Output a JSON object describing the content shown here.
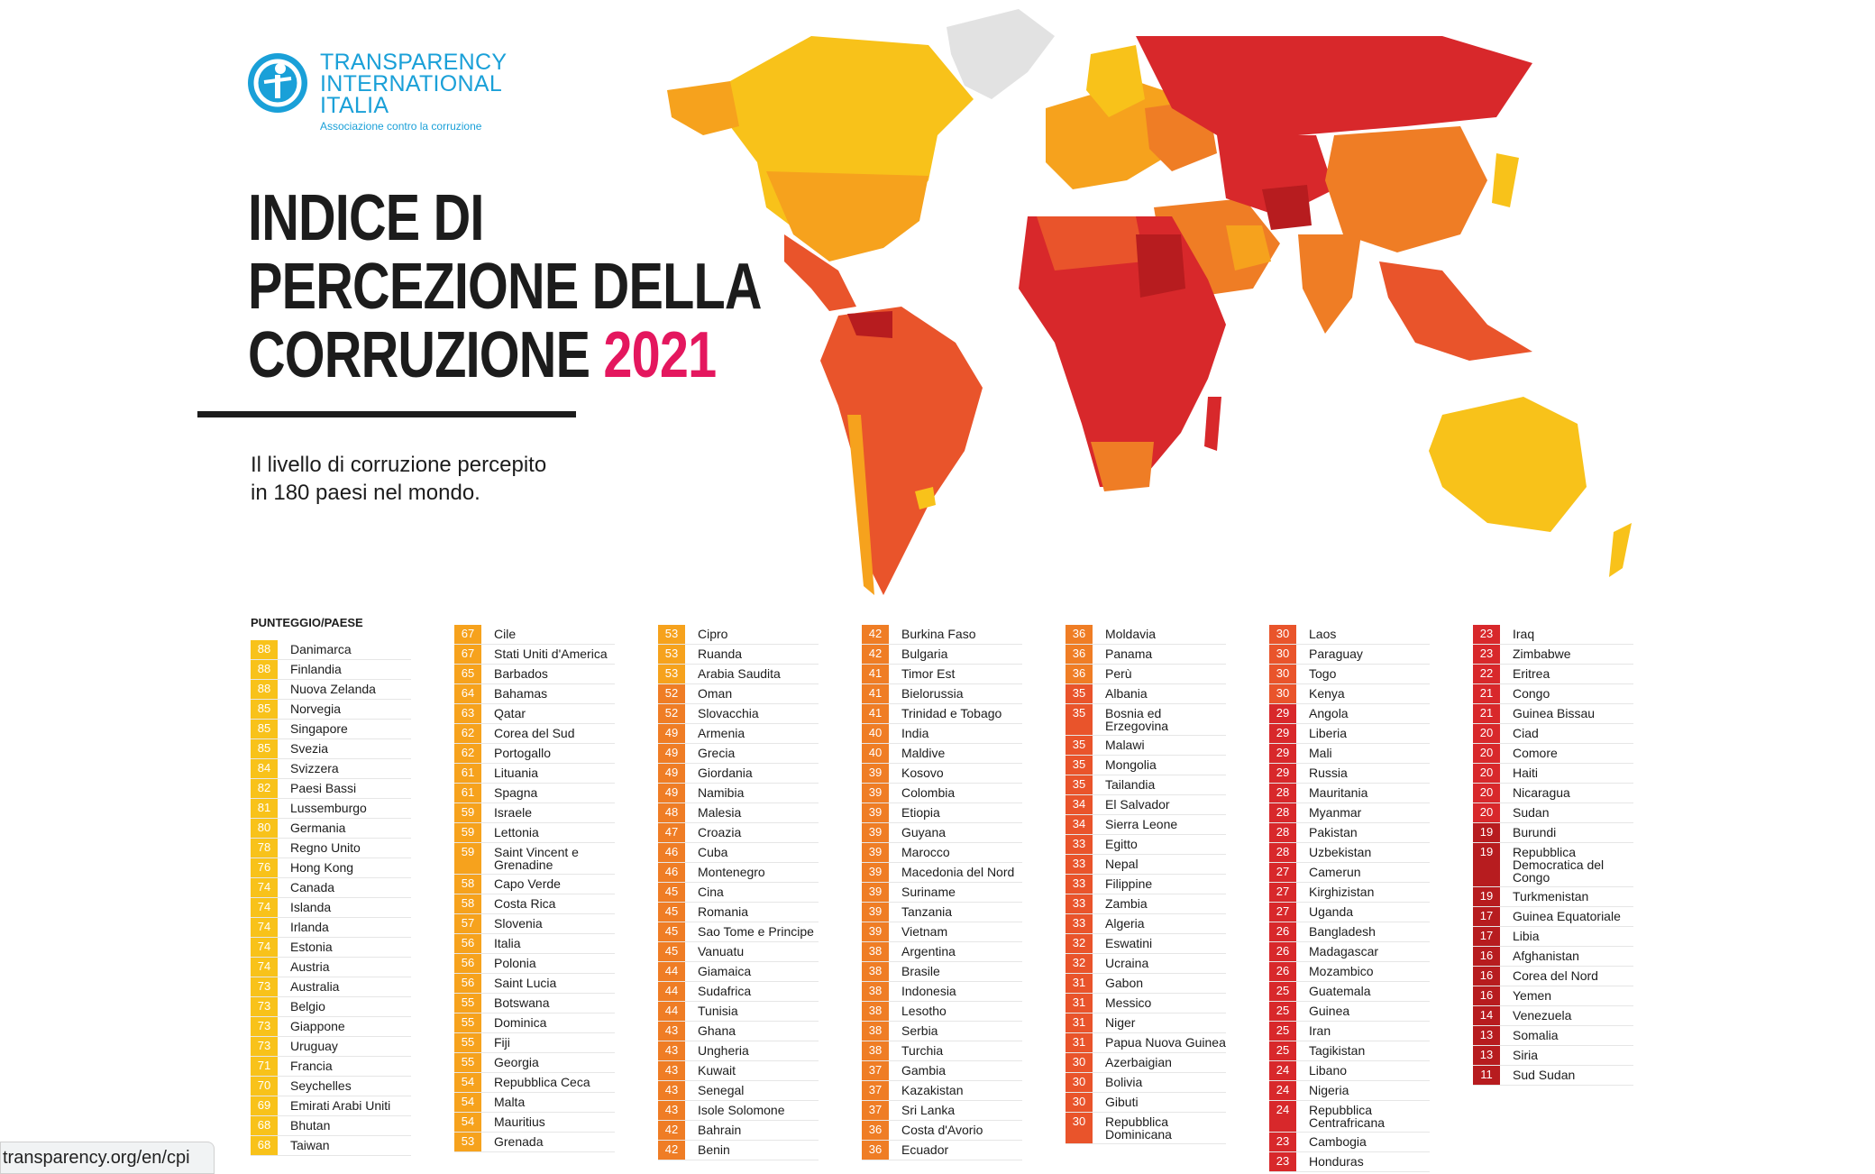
{
  "logo": {
    "line1": "TRANSPARENCY",
    "line2": "INTERNATIONAL",
    "line3": "ITALIA",
    "subtitle": "Associazione contro la corruzione"
  },
  "title": {
    "line1": "INDICE DI",
    "line2": "PERCEZIONE DELLA",
    "line3": "CORRUZIONE",
    "year": "2021"
  },
  "subtitle": {
    "line1": "Il livello di corruzione percepito",
    "line2": "in 180 paesi nel mondo."
  },
  "legend_header": "PUNTEGGIO/PAESE",
  "url": "transparency.org/en/cpi",
  "colors": {
    "high": "#f8c21a",
    "upper": "#f6a21d",
    "mid": "#ef7d25",
    "lowmid": "#e9542b",
    "low": "#d8282b",
    "lowest": "#b71c1f"
  },
  "columns": [
    [
      [
        "88",
        "Danimarca"
      ],
      [
        "88",
        "Finlandia"
      ],
      [
        "88",
        "Nuova Zelanda"
      ],
      [
        "85",
        "Norvegia"
      ],
      [
        "85",
        "Singapore"
      ],
      [
        "85",
        "Svezia"
      ],
      [
        "84",
        "Svizzera"
      ],
      [
        "82",
        "Paesi Bassi"
      ],
      [
        "81",
        "Lussemburgo"
      ],
      [
        "80",
        "Germania"
      ],
      [
        "78",
        "Regno Unito"
      ],
      [
        "76",
        "Hong Kong"
      ],
      [
        "74",
        "Canada"
      ],
      [
        "74",
        "Islanda"
      ],
      [
        "74",
        "Irlanda"
      ],
      [
        "74",
        "Estonia"
      ],
      [
        "74",
        "Austria"
      ],
      [
        "73",
        "Australia"
      ],
      [
        "73",
        "Belgio"
      ],
      [
        "73",
        "Giappone"
      ],
      [
        "73",
        "Uruguay"
      ],
      [
        "71",
        "Francia"
      ],
      [
        "70",
        "Seychelles"
      ],
      [
        "69",
        "Emirati Arabi Uniti"
      ],
      [
        "68",
        "Bhutan"
      ],
      [
        "68",
        "Taiwan"
      ]
    ],
    [
      [
        "67",
        "Cile"
      ],
      [
        "67",
        "Stati Uniti d'America"
      ],
      [
        "65",
        "Barbados"
      ],
      [
        "64",
        "Bahamas"
      ],
      [
        "63",
        "Qatar"
      ],
      [
        "62",
        "Corea del Sud"
      ],
      [
        "62",
        "Portogallo"
      ],
      [
        "61",
        "Lituania"
      ],
      [
        "61",
        "Spagna"
      ],
      [
        "59",
        "Israele"
      ],
      [
        "59",
        "Lettonia"
      ],
      [
        "59",
        "Saint Vincent e Grenadine"
      ],
      [
        "58",
        "Capo Verde"
      ],
      [
        "58",
        "Costa Rica"
      ],
      [
        "57",
        "Slovenia"
      ],
      [
        "56",
        "Italia"
      ],
      [
        "56",
        "Polonia"
      ],
      [
        "56",
        "Saint Lucia"
      ],
      [
        "55",
        "Botswana"
      ],
      [
        "55",
        "Dominica"
      ],
      [
        "55",
        "Fiji"
      ],
      [
        "55",
        "Georgia"
      ],
      [
        "54",
        "Repubblica Ceca"
      ],
      [
        "54",
        "Malta"
      ],
      [
        "54",
        "Mauritius"
      ],
      [
        "53",
        "Grenada"
      ]
    ],
    [
      [
        "53",
        "Cipro"
      ],
      [
        "53",
        "Ruanda"
      ],
      [
        "53",
        "Arabia Saudita"
      ],
      [
        "52",
        "Oman"
      ],
      [
        "52",
        "Slovacchia"
      ],
      [
        "49",
        "Armenia"
      ],
      [
        "49",
        "Grecia"
      ],
      [
        "49",
        "Giordania"
      ],
      [
        "49",
        "Namibia"
      ],
      [
        "48",
        "Malesia"
      ],
      [
        "47",
        "Croazia"
      ],
      [
        "46",
        "Cuba"
      ],
      [
        "46",
        "Montenegro"
      ],
      [
        "45",
        "Cina"
      ],
      [
        "45",
        "Romania"
      ],
      [
        "45",
        "Sao Tome e Principe"
      ],
      [
        "45",
        "Vanuatu"
      ],
      [
        "44",
        "Giamaica"
      ],
      [
        "44",
        "Sudafrica"
      ],
      [
        "44",
        "Tunisia"
      ],
      [
        "43",
        "Ghana"
      ],
      [
        "43",
        "Ungheria"
      ],
      [
        "43",
        "Kuwait"
      ],
      [
        "43",
        "Senegal"
      ],
      [
        "43",
        "Isole Solomone"
      ],
      [
        "42",
        "Bahrain"
      ],
      [
        "42",
        "Benin"
      ]
    ],
    [
      [
        "42",
        "Burkina Faso"
      ],
      [
        "42",
        "Bulgaria"
      ],
      [
        "41",
        "Timor Est"
      ],
      [
        "41",
        "Bielorussia"
      ],
      [
        "41",
        "Trinidad e Tobago"
      ],
      [
        "40",
        "India"
      ],
      [
        "40",
        "Maldive"
      ],
      [
        "39",
        "Kosovo"
      ],
      [
        "39",
        "Colombia"
      ],
      [
        "39",
        "Etiopia"
      ],
      [
        "39",
        "Guyana"
      ],
      [
        "39",
        "Marocco"
      ],
      [
        "39",
        "Macedonia del Nord"
      ],
      [
        "39",
        "Suriname"
      ],
      [
        "39",
        "Tanzania"
      ],
      [
        "39",
        "Vietnam"
      ],
      [
        "38",
        "Argentina"
      ],
      [
        "38",
        "Brasile"
      ],
      [
        "38",
        "Indonesia"
      ],
      [
        "38",
        "Lesotho"
      ],
      [
        "38",
        "Serbia"
      ],
      [
        "38",
        "Turchia"
      ],
      [
        "37",
        "Gambia"
      ],
      [
        "37",
        "Kazakistan"
      ],
      [
        "37",
        "Sri Lanka"
      ],
      [
        "36",
        "Costa d'Avorio"
      ],
      [
        "36",
        "Ecuador"
      ]
    ],
    [
      [
        "36",
        "Moldavia"
      ],
      [
        "36",
        "Panama"
      ],
      [
        "36",
        "Perù"
      ],
      [
        "35",
        "Albania"
      ],
      [
        "35",
        "Bosnia ed Erzegovina"
      ],
      [
        "35",
        "Malawi"
      ],
      [
        "35",
        "Mongolia"
      ],
      [
        "35",
        "Tailandia"
      ],
      [
        "34",
        "El Salvador"
      ],
      [
        "34",
        "Sierra Leone"
      ],
      [
        "33",
        "Egitto"
      ],
      [
        "33",
        "Nepal"
      ],
      [
        "33",
        "Filippine"
      ],
      [
        "33",
        "Zambia"
      ],
      [
        "33",
        "Algeria"
      ],
      [
        "32",
        "Eswatini"
      ],
      [
        "32",
        "Ucraina"
      ],
      [
        "31",
        "Gabon"
      ],
      [
        "31",
        "Messico"
      ],
      [
        "31",
        "Niger"
      ],
      [
        "31",
        "Papua Nuova Guinea"
      ],
      [
        "30",
        "Azerbaigian"
      ],
      [
        "30",
        "Bolivia"
      ],
      [
        "30",
        "Gibuti"
      ],
      [
        "30",
        "Repubblica Dominicana"
      ]
    ],
    [
      [
        "30",
        "Laos"
      ],
      [
        "30",
        "Paraguay"
      ],
      [
        "30",
        "Togo"
      ],
      [
        "30",
        "Kenya"
      ],
      [
        "29",
        "Angola"
      ],
      [
        "29",
        "Liberia"
      ],
      [
        "29",
        "Mali"
      ],
      [
        "29",
        "Russia"
      ],
      [
        "28",
        "Mauritania"
      ],
      [
        "28",
        "Myanmar"
      ],
      [
        "28",
        "Pakistan"
      ],
      [
        "28",
        "Uzbekistan"
      ],
      [
        "27",
        "Camerun"
      ],
      [
        "27",
        "Kirghizistan"
      ],
      [
        "27",
        "Uganda"
      ],
      [
        "26",
        "Bangladesh"
      ],
      [
        "26",
        "Madagascar"
      ],
      [
        "26",
        "Mozambico"
      ],
      [
        "25",
        "Guatemala"
      ],
      [
        "25",
        "Guinea"
      ],
      [
        "25",
        "Iran"
      ],
      [
        "25",
        "Tagikistan"
      ],
      [
        "24",
        "Libano"
      ],
      [
        "24",
        "Nigeria"
      ],
      [
        "24",
        "Repubblica Centrafricana"
      ],
      [
        "23",
        "Cambogia"
      ],
      [
        "23",
        "Honduras"
      ]
    ],
    [
      [
        "23",
        "Iraq"
      ],
      [
        "23",
        "Zimbabwe"
      ],
      [
        "22",
        "Eritrea"
      ],
      [
        "21",
        "Congo"
      ],
      [
        "21",
        "Guinea Bissau"
      ],
      [
        "20",
        "Ciad"
      ],
      [
        "20",
        "Comore"
      ],
      [
        "20",
        "Haiti"
      ],
      [
        "20",
        "Nicaragua"
      ],
      [
        "20",
        "Sudan"
      ],
      [
        "19",
        "Burundi"
      ],
      [
        "19",
        "Repubblica Democratica del Congo"
      ],
      [
        "19",
        "Turkmenistan"
      ],
      [
        "17",
        "Guinea Equatoriale"
      ],
      [
        "17",
        "Libia"
      ],
      [
        "16",
        "Afghanistan"
      ],
      [
        "16",
        "Corea del Nord"
      ],
      [
        "16",
        "Yemen"
      ],
      [
        "14",
        "Venezuela"
      ],
      [
        "13",
        "Somalia"
      ],
      [
        "13",
        "Siria"
      ],
      [
        "11",
        "Sud Sudan"
      ]
    ]
  ]
}
